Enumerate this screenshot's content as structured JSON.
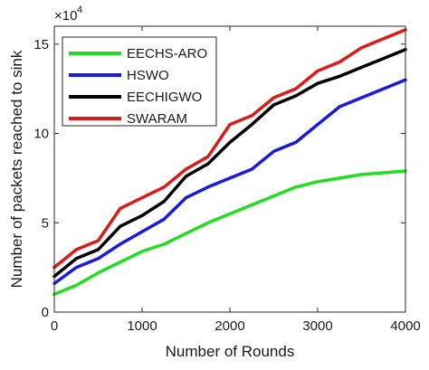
{
  "chart_data": {
    "type": "line",
    "xlabel": "Number of Rounds",
    "ylabel": "Number of packets reached to sink",
    "y_exponent": {
      "base": "×10",
      "power": "4"
    },
    "xlim": [
      0,
      4000
    ],
    "ylim": [
      0,
      16
    ],
    "xticks": [
      0,
      1000,
      2000,
      3000,
      4000
    ],
    "yticks": [
      0,
      5,
      10,
      15
    ],
    "grid": false,
    "legend_position": "top-left",
    "x": [
      0,
      250,
      500,
      750,
      1000,
      1250,
      1500,
      1750,
      2000,
      2250,
      2500,
      2750,
      3000,
      3250,
      3500,
      3750,
      4000
    ],
    "series": [
      {
        "name": "EECHS-ARO",
        "color": "#22dd22",
        "values": [
          1.0,
          1.5,
          2.2,
          2.8,
          3.4,
          3.8,
          4.4,
          5.0,
          5.5,
          6.0,
          6.5,
          7.0,
          7.3,
          7.5,
          7.7,
          7.8,
          7.9
        ]
      },
      {
        "name": "HSWO",
        "color": "#1a1adc",
        "values": [
          1.6,
          2.5,
          3.0,
          3.8,
          4.5,
          5.2,
          6.4,
          7.0,
          7.5,
          8.0,
          9.0,
          9.5,
          10.5,
          11.5,
          12.0,
          12.5,
          13.0
        ]
      },
      {
        "name": "EECHIGWO",
        "color": "#000000",
        "values": [
          2.0,
          3.0,
          3.5,
          4.8,
          5.4,
          6.2,
          7.6,
          8.3,
          9.5,
          10.5,
          11.6,
          12.1,
          12.8,
          13.2,
          13.7,
          14.2,
          14.7
        ]
      },
      {
        "name": "SWARAM",
        "color": "#dd1a1a",
        "values": [
          2.5,
          3.5,
          4.0,
          5.8,
          6.4,
          7.0,
          8.0,
          8.7,
          10.5,
          11.0,
          12.0,
          12.5,
          13.5,
          14.0,
          14.8,
          15.3,
          15.8
        ]
      }
    ]
  }
}
